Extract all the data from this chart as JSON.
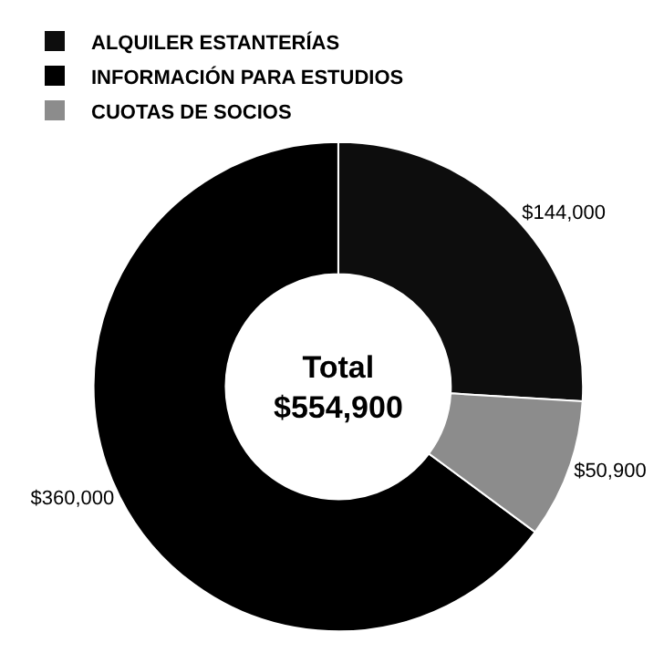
{
  "chart_data": {
    "type": "donut",
    "categories": [
      "ALQUILER ESTANTERÍAS",
      "INFORMACIÓN PARA ESTUDIOS",
      "CUOTAS DE SOCIOS"
    ],
    "values": [
      144000,
      360000,
      50900
    ],
    "value_labels": [
      "$144,000",
      "$360,000",
      "$50,900"
    ],
    "colors": [
      "#0d0d0d",
      "#000000",
      "#8c8c8c"
    ],
    "annotations": [
      "Total\n$554,900"
    ],
    "legend": "top left"
  }
}
